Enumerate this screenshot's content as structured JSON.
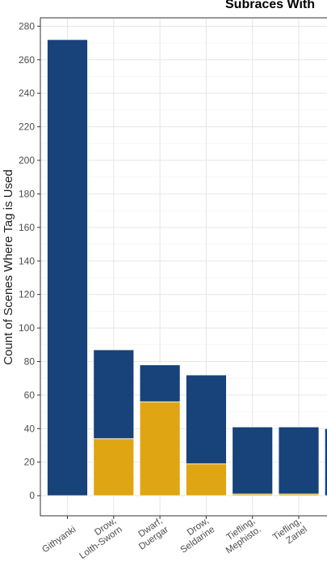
{
  "chart_data": {
    "type": "bar",
    "stacked": true,
    "title": "Subraces With",
    "xlabel": "",
    "ylabel": "Count of Scenes Where Tag is Used",
    "ylim": [
      -12,
      285
    ],
    "yticks": [
      0,
      20,
      40,
      60,
      80,
      100,
      120,
      140,
      160,
      180,
      200,
      220,
      240,
      260,
      280
    ],
    "grid": true,
    "categories": [
      "Githyanki",
      "Drow,\nLolth-Sworn",
      "Dwarf,\nDuergar",
      "Drow,\nSeldarine",
      "Tiefling,\nMephisto.",
      "Tiefling,\nZariel",
      ""
    ],
    "series": [
      {
        "values": [
          0,
          34,
          56,
          19,
          1,
          1,
          0
        ],
        "color": "#E0A513"
      },
      {
        "values": [
          272,
          53,
          22,
          53,
          40,
          40,
          40
        ],
        "color": "#17427A"
      }
    ],
    "totals": [
      272,
      87,
      78,
      72,
      41,
      41,
      40
    ]
  }
}
